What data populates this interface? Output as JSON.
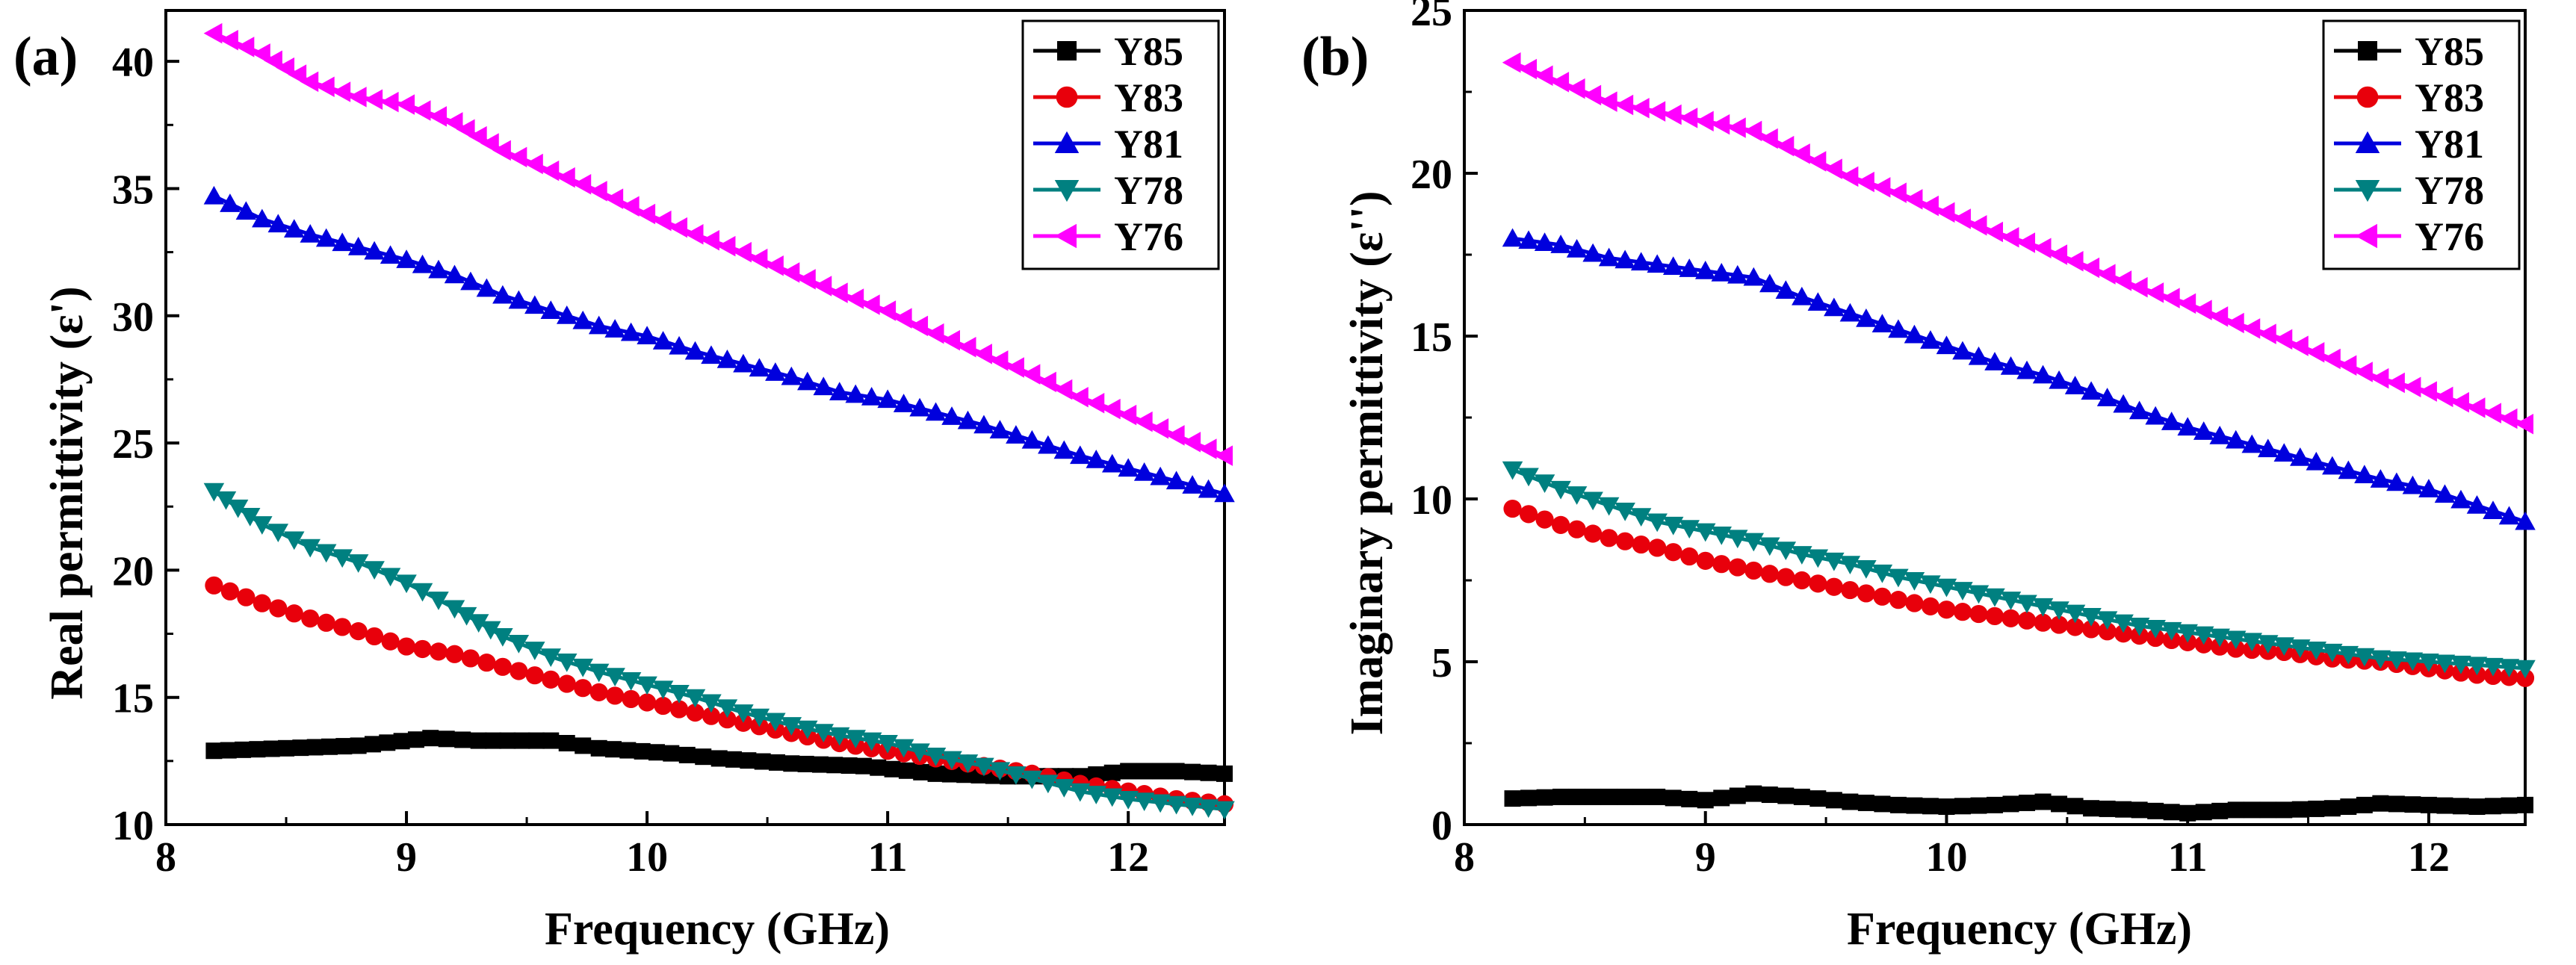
{
  "chart_data": [
    {
      "type": "line",
      "panel_label": "(a)",
      "title": "",
      "xlabel": "Frequency (GHz)",
      "ylabel": "Real permittivity (ε')",
      "xlim": [
        8.0,
        12.4
      ],
      "ylim": [
        10,
        42
      ],
      "xticks": [
        8,
        9,
        10,
        11,
        12
      ],
      "yticks": [
        10,
        15,
        20,
        25,
        30,
        35,
        40
      ],
      "grid": false,
      "legend_position": "top-right",
      "series": [
        {
          "name": "Y85",
          "color": "#000000",
          "marker": "square",
          "points": [
            [
              8.2,
              12.9
            ],
            [
              8.5,
              13.0
            ],
            [
              8.8,
              13.1
            ],
            [
              9.1,
              13.4
            ],
            [
              9.3,
              13.3
            ],
            [
              9.6,
              13.3
            ],
            [
              9.8,
              13.0
            ],
            [
              10.1,
              12.8
            ],
            [
              10.3,
              12.6
            ],
            [
              10.6,
              12.4
            ],
            [
              10.9,
              12.3
            ],
            [
              11.2,
              12.0
            ],
            [
              11.5,
              11.9
            ],
            [
              11.8,
              11.9
            ],
            [
              12.0,
              12.1
            ],
            [
              12.2,
              12.1
            ],
            [
              12.4,
              12.0
            ]
          ]
        },
        {
          "name": "Y83",
          "color": "#e8000b",
          "marker": "circle",
          "points": [
            [
              8.2,
              19.4
            ],
            [
              8.4,
              18.7
            ],
            [
              8.6,
              18.1
            ],
            [
              8.8,
              17.6
            ],
            [
              9.0,
              17.0
            ],
            [
              9.2,
              16.7
            ],
            [
              9.4,
              16.2
            ],
            [
              9.6,
              15.7
            ],
            [
              9.8,
              15.2
            ],
            [
              10.0,
              14.8
            ],
            [
              10.2,
              14.4
            ],
            [
              10.4,
              14.0
            ],
            [
              10.6,
              13.6
            ],
            [
              10.8,
              13.2
            ],
            [
              11.0,
              12.9
            ],
            [
              11.2,
              12.6
            ],
            [
              11.4,
              12.3
            ],
            [
              11.6,
              12.0
            ],
            [
              11.8,
              11.6
            ],
            [
              12.0,
              11.3
            ],
            [
              12.2,
              11.0
            ],
            [
              12.4,
              10.8
            ]
          ]
        },
        {
          "name": "Y78",
          "color": "#008080",
          "marker": "triangle-down",
          "points": [
            [
              8.2,
              23.1
            ],
            [
              8.4,
              21.8
            ],
            [
              8.6,
              20.9
            ],
            [
              8.8,
              20.3
            ],
            [
              9.0,
              19.5
            ],
            [
              9.2,
              18.5
            ],
            [
              9.4,
              17.4
            ],
            [
              9.6,
              16.6
            ],
            [
              9.8,
              16.0
            ],
            [
              10.0,
              15.5
            ],
            [
              10.2,
              15.0
            ],
            [
              10.4,
              14.4
            ],
            [
              10.6,
              13.9
            ],
            [
              10.8,
              13.5
            ],
            [
              11.0,
              13.2
            ],
            [
              11.2,
              12.7
            ],
            [
              11.4,
              12.3
            ],
            [
              11.6,
              11.8
            ],
            [
              11.8,
              11.3
            ],
            [
              12.0,
              11.0
            ],
            [
              12.2,
              10.8
            ],
            [
              12.4,
              10.6
            ]
          ]
        },
        {
          "name": "Y81",
          "color": "#0000dd",
          "marker": "triangle-up",
          "points": [
            [
              8.2,
              34.7
            ],
            [
              8.4,
              33.8
            ],
            [
              8.6,
              33.2
            ],
            [
              8.8,
              32.7
            ],
            [
              9.0,
              32.2
            ],
            [
              9.2,
              31.6
            ],
            [
              9.4,
              30.8
            ],
            [
              9.6,
              30.2
            ],
            [
              9.8,
              29.6
            ],
            [
              10.0,
              29.2
            ],
            [
              10.2,
              28.6
            ],
            [
              10.4,
              28.1
            ],
            [
              10.6,
              27.6
            ],
            [
              10.8,
              27.0
            ],
            [
              11.0,
              26.7
            ],
            [
              11.2,
              26.2
            ],
            [
              11.4,
              25.7
            ],
            [
              11.6,
              25.1
            ],
            [
              11.8,
              24.5
            ],
            [
              12.0,
              24.0
            ],
            [
              12.2,
              23.5
            ],
            [
              12.4,
              23.0
            ]
          ]
        },
        {
          "name": "Y76",
          "color": "#ff00ff",
          "marker": "triangle-left",
          "points": [
            [
              8.2,
              41.1
            ],
            [
              8.4,
              40.3
            ],
            [
              8.6,
              39.2
            ],
            [
              8.8,
              38.6
            ],
            [
              9.0,
              38.3
            ],
            [
              9.2,
              37.6
            ],
            [
              9.4,
              36.5
            ],
            [
              9.6,
              35.7
            ],
            [
              9.8,
              34.9
            ],
            [
              10.0,
              34.0
            ],
            [
              10.2,
              33.2
            ],
            [
              10.4,
              32.5
            ],
            [
              10.6,
              31.7
            ],
            [
              10.8,
              30.9
            ],
            [
              11.0,
              30.2
            ],
            [
              11.2,
              29.3
            ],
            [
              11.4,
              28.5
            ],
            [
              11.6,
              27.7
            ],
            [
              11.8,
              26.8
            ],
            [
              12.0,
              26.1
            ],
            [
              12.2,
              25.3
            ],
            [
              12.4,
              24.5
            ]
          ]
        }
      ]
    },
    {
      "type": "line",
      "panel_label": "(b)",
      "title": "",
      "xlabel": "Frequency (GHz)",
      "ylabel": "Imaginary permittivity (ε'')",
      "xlim": [
        8.0,
        12.4
      ],
      "ylim": [
        0,
        25
      ],
      "xticks": [
        8,
        9,
        10,
        11,
        12
      ],
      "yticks": [
        0,
        5,
        10,
        15,
        20,
        25
      ],
      "grid": false,
      "legend_position": "top-right",
      "series": [
        {
          "name": "Y85",
          "color": "#000000",
          "marker": "square",
          "points": [
            [
              8.2,
              0.8
            ],
            [
              8.4,
              0.85
            ],
            [
              8.6,
              0.85
            ],
            [
              8.8,
              0.85
            ],
            [
              9.0,
              0.75
            ],
            [
              9.2,
              0.95
            ],
            [
              9.4,
              0.85
            ],
            [
              9.6,
              0.7
            ],
            [
              9.8,
              0.6
            ],
            [
              10.0,
              0.55
            ],
            [
              10.2,
              0.6
            ],
            [
              10.4,
              0.7
            ],
            [
              10.6,
              0.5
            ],
            [
              10.8,
              0.45
            ],
            [
              11.0,
              0.35
            ],
            [
              11.2,
              0.45
            ],
            [
              11.4,
              0.45
            ],
            [
              11.6,
              0.5
            ],
            [
              11.8,
              0.65
            ],
            [
              12.0,
              0.6
            ],
            [
              12.2,
              0.55
            ],
            [
              12.4,
              0.6
            ]
          ]
        },
        {
          "name": "Y83",
          "color": "#e8000b",
          "marker": "circle",
          "points": [
            [
              8.2,
              9.7
            ],
            [
              8.4,
              9.2
            ],
            [
              8.6,
              8.8
            ],
            [
              8.8,
              8.5
            ],
            [
              9.0,
              8.1
            ],
            [
              9.2,
              7.8
            ],
            [
              9.4,
              7.5
            ],
            [
              9.6,
              7.2
            ],
            [
              9.8,
              6.9
            ],
            [
              10.0,
              6.6
            ],
            [
              10.2,
              6.4
            ],
            [
              10.4,
              6.2
            ],
            [
              10.6,
              6.0
            ],
            [
              10.8,
              5.8
            ],
            [
              11.0,
              5.6
            ],
            [
              11.2,
              5.4
            ],
            [
              11.4,
              5.3
            ],
            [
              11.6,
              5.1
            ],
            [
              11.8,
              5.0
            ],
            [
              12.0,
              4.8
            ],
            [
              12.2,
              4.6
            ],
            [
              12.4,
              4.5
            ]
          ]
        },
        {
          "name": "Y78",
          "color": "#008080",
          "marker": "triangle-down",
          "points": [
            [
              8.2,
              10.9
            ],
            [
              8.4,
              10.3
            ],
            [
              8.6,
              9.8
            ],
            [
              8.8,
              9.3
            ],
            [
              9.0,
              9.0
            ],
            [
              9.2,
              8.7
            ],
            [
              9.4,
              8.3
            ],
            [
              9.6,
              8.0
            ],
            [
              9.8,
              7.6
            ],
            [
              10.0,
              7.3
            ],
            [
              10.2,
              7.0
            ],
            [
              10.4,
              6.7
            ],
            [
              10.6,
              6.4
            ],
            [
              10.8,
              6.1
            ],
            [
              11.0,
              5.9
            ],
            [
              11.2,
              5.7
            ],
            [
              11.4,
              5.5
            ],
            [
              11.6,
              5.3
            ],
            [
              11.8,
              5.1
            ],
            [
              12.0,
              5.0
            ],
            [
              12.2,
              4.9
            ],
            [
              12.4,
              4.8
            ]
          ]
        },
        {
          "name": "Y81",
          "color": "#0000dd",
          "marker": "triangle-up",
          "points": [
            [
              8.2,
              18.0
            ],
            [
              8.4,
              17.8
            ],
            [
              8.6,
              17.4
            ],
            [
              8.8,
              17.2
            ],
            [
              9.0,
              17.0
            ],
            [
              9.2,
              16.8
            ],
            [
              9.4,
              16.2
            ],
            [
              9.6,
              15.7
            ],
            [
              9.8,
              15.2
            ],
            [
              10.0,
              14.7
            ],
            [
              10.2,
              14.2
            ],
            [
              10.4,
              13.8
            ],
            [
              10.6,
              13.3
            ],
            [
              10.8,
              12.7
            ],
            [
              11.0,
              12.2
            ],
            [
              11.2,
              11.8
            ],
            [
              11.4,
              11.4
            ],
            [
              11.6,
              11.0
            ],
            [
              11.8,
              10.6
            ],
            [
              12.0,
              10.3
            ],
            [
              12.2,
              9.8
            ],
            [
              12.4,
              9.3
            ]
          ]
        },
        {
          "name": "Y76",
          "color": "#ff00ff",
          "marker": "triangle-left",
          "points": [
            [
              8.2,
              23.4
            ],
            [
              8.4,
              22.8
            ],
            [
              8.6,
              22.2
            ],
            [
              8.8,
              21.9
            ],
            [
              9.0,
              21.6
            ],
            [
              9.2,
              21.3
            ],
            [
              9.4,
              20.6
            ],
            [
              9.6,
              19.9
            ],
            [
              9.8,
              19.4
            ],
            [
              10.0,
              18.8
            ],
            [
              10.2,
              18.2
            ],
            [
              10.4,
              17.7
            ],
            [
              10.6,
              17.1
            ],
            [
              10.8,
              16.5
            ],
            [
              11.0,
              16.0
            ],
            [
              11.2,
              15.4
            ],
            [
              11.4,
              14.9
            ],
            [
              11.6,
              14.3
            ],
            [
              11.8,
              13.7
            ],
            [
              12.0,
              13.3
            ],
            [
              12.2,
              12.8
            ],
            [
              12.4,
              12.3
            ]
          ]
        }
      ]
    }
  ],
  "legend_order": [
    "Y85",
    "Y83",
    "Y81",
    "Y78",
    "Y76"
  ]
}
